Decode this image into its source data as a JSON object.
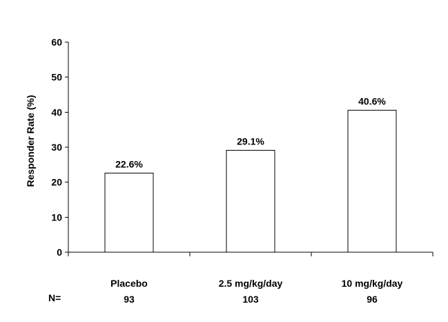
{
  "chart_data": {
    "type": "bar",
    "categories": [
      "Placebo",
      "2.5 mg/kg/day",
      "10 mg/kg/day"
    ],
    "values": [
      22.6,
      29.1,
      40.6
    ],
    "data_labels": [
      "22.6%",
      "29.1%",
      "40.6%"
    ],
    "n_label": "N=",
    "n_values": [
      "93",
      "103",
      "96"
    ],
    "ylabel": "Responder Rate (%)",
    "ylim": [
      0,
      60
    ],
    "yticks": [
      0,
      10,
      20,
      30,
      40,
      50,
      60
    ],
    "grid": false,
    "legend": "none",
    "colors": {
      "bar_fill": "#ffffff",
      "bar_stroke": "#000000",
      "text": "#000000"
    }
  }
}
